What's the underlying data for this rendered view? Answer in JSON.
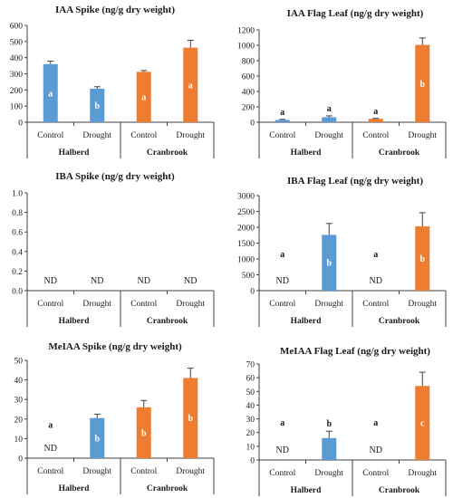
{
  "colors": {
    "Halberd": "#5b9bd5",
    "Cranbrook": "#ed7d31",
    "axis": "#404040",
    "error": "#404040"
  },
  "chart_data": [
    {
      "type": "bar",
      "title": "IAA Spike (ng/g dry weight)",
      "ylim": [
        0,
        600
      ],
      "yticks": [
        0,
        100,
        200,
        300,
        400,
        500,
        600
      ],
      "groups": [
        {
          "name": "Halberd",
          "bars": [
            {
              "label": "Control",
              "value": 360,
              "error": 18,
              "letter": "a",
              "letter_mode": "inside"
            },
            {
              "label": "Drought",
              "value": 208,
              "error": 12,
              "letter": "b",
              "letter_mode": "inside"
            }
          ]
        },
        {
          "name": "Cranbrook",
          "bars": [
            {
              "label": "Control",
              "value": 312,
              "error": 8,
              "letter": "a",
              "letter_mode": "inside"
            },
            {
              "label": "Drought",
              "value": 462,
              "error": 45,
              "letter": "a",
              "letter_mode": "inside"
            }
          ]
        }
      ]
    },
    {
      "type": "bar",
      "title": "IAA Flag Leaf (ng/g dry weight)",
      "ylim": [
        0,
        1200
      ],
      "yticks": [
        0,
        200,
        400,
        600,
        800,
        1000,
        1200
      ],
      "groups": [
        {
          "name": "Halberd",
          "bars": [
            {
              "label": "Control",
              "value": 30,
              "error": 8,
              "letter": "a",
              "letter_mode": "above"
            },
            {
              "label": "Drought",
              "value": 65,
              "error": 18,
              "letter": "a",
              "letter_mode": "above"
            }
          ]
        },
        {
          "name": "Cranbrook",
          "bars": [
            {
              "label": "Control",
              "value": 45,
              "error": 5,
              "letter": "a",
              "letter_mode": "above"
            },
            {
              "label": "Drought",
              "value": 1005,
              "error": 90,
              "letter": "b",
              "letter_mode": "inside"
            }
          ]
        }
      ]
    },
    {
      "type": "bar",
      "title": "IBA Spike (ng/g dry weight)",
      "ylim": [
        0,
        1.0
      ],
      "yticks": [
        0.0,
        0.2,
        0.4,
        0.6,
        0.8,
        1.0
      ],
      "tick_decimals": 1,
      "groups": [
        {
          "name": "Halberd",
          "bars": [
            {
              "label": "Control",
              "value": 0,
              "nd": "ND"
            },
            {
              "label": "Drought",
              "value": 0,
              "nd": "ND"
            }
          ]
        },
        {
          "name": "Cranbrook",
          "bars": [
            {
              "label": "Control",
              "value": 0,
              "nd": "ND"
            },
            {
              "label": "Drought",
              "value": 0,
              "nd": "ND"
            }
          ]
        }
      ]
    },
    {
      "type": "bar",
      "title": "IBA Flag Leaf (ng/g dry weight)",
      "ylim": [
        0,
        3000
      ],
      "yticks": [
        0,
        500,
        1000,
        1500,
        2000,
        2500,
        3000
      ],
      "groups": [
        {
          "name": "Halberd",
          "bars": [
            {
              "label": "Control",
              "value": 0,
              "nd": "ND",
              "letter": "a",
              "letter_at": 1150
            },
            {
              "label": "Drought",
              "value": 1760,
              "error": 360,
              "letter": "b",
              "letter_mode": "inside"
            }
          ]
        },
        {
          "name": "Cranbrook",
          "bars": [
            {
              "label": "Control",
              "value": 0,
              "nd": "ND",
              "letter": "a",
              "letter_at": 1150
            },
            {
              "label": "Drought",
              "value": 2030,
              "error": 430,
              "letter": "b",
              "letter_mode": "inside"
            }
          ]
        }
      ]
    },
    {
      "type": "bar",
      "title": "MeIAA Spike (ng/g dry weight)",
      "ylim": [
        0,
        50
      ],
      "yticks": [
        0,
        10,
        20,
        30,
        40,
        50
      ],
      "groups": [
        {
          "name": "Halberd",
          "bars": [
            {
              "label": "Control",
              "value": 0,
              "nd": "ND",
              "letter": "a",
              "letter_at": 17
            },
            {
              "label": "Drought",
              "value": 20.5,
              "error": 2,
              "letter": "b",
              "letter_mode": "inside"
            }
          ]
        },
        {
          "name": "Cranbrook",
          "bars": [
            {
              "label": "Control",
              "value": 26,
              "error": 3.5,
              "letter": "b",
              "letter_mode": "inside"
            },
            {
              "label": "Drought",
              "value": 41,
              "error": 5,
              "letter": "b",
              "letter_mode": "inside"
            }
          ]
        }
      ]
    },
    {
      "type": "bar",
      "title": "MeIAA Flag Leaf (ng/g dry weight)",
      "ylim": [
        0,
        70
      ],
      "yticks": [
        0,
        10,
        20,
        30,
        40,
        50,
        60,
        70
      ],
      "groups": [
        {
          "name": "Halberd",
          "bars": [
            {
              "label": "Control",
              "value": 0,
              "nd": "ND",
              "letter": "a",
              "letter_at": 27
            },
            {
              "label": "Drought",
              "value": 16,
              "error": 5,
              "letter": "b",
              "letter_mode": "above"
            }
          ]
        },
        {
          "name": "Cranbrook",
          "bars": [
            {
              "label": "Control",
              "value": 0,
              "nd": "ND",
              "letter": "a",
              "letter_at": 27
            },
            {
              "label": "Drought",
              "value": 54,
              "error": 10,
              "letter": "c",
              "letter_mode": "inside"
            }
          ]
        }
      ]
    }
  ]
}
